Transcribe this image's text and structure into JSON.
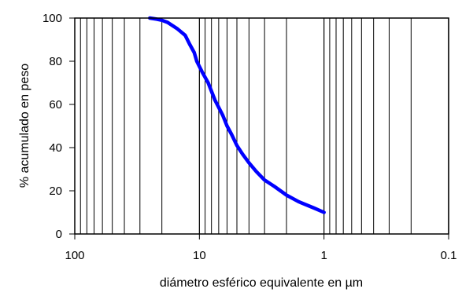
{
  "chart_data": {
    "type": "line",
    "x_scale": "log",
    "x_reversed": true,
    "xlim": [
      100,
      0.1
    ],
    "ylim": [
      0,
      100
    ],
    "grid": "vertical",
    "xlabel": "diámetro esférico equivalente en µm",
    "ylabel": "% acumulado en peso",
    "x_tick_labels": [
      "100",
      "10",
      "1",
      "0.1"
    ],
    "y_tick_labels": [
      "0",
      "20",
      "40",
      "60",
      "80",
      "100"
    ],
    "series": [
      {
        "color": "#0000ff",
        "points": [
          [
            25,
            100
          ],
          [
            22,
            99.5
          ],
          [
            20,
            99
          ],
          [
            18,
            98
          ],
          [
            15,
            95
          ],
          [
            13,
            92
          ],
          [
            12,
            88
          ],
          [
            11,
            84
          ],
          [
            10.5,
            80
          ],
          [
            9.5,
            75
          ],
          [
            8.5,
            70
          ],
          [
            7.5,
            62
          ],
          [
            6.5,
            55
          ],
          [
            6,
            50
          ],
          [
            5.5,
            46
          ],
          [
            5,
            41
          ],
          [
            4.5,
            37
          ],
          [
            4,
            33
          ],
          [
            3.5,
            29
          ],
          [
            3,
            25
          ],
          [
            2.5,
            22
          ],
          [
            2,
            18
          ],
          [
            1.6,
            15
          ],
          [
            1.2,
            12
          ],
          [
            1,
            10
          ]
        ]
      }
    ]
  }
}
